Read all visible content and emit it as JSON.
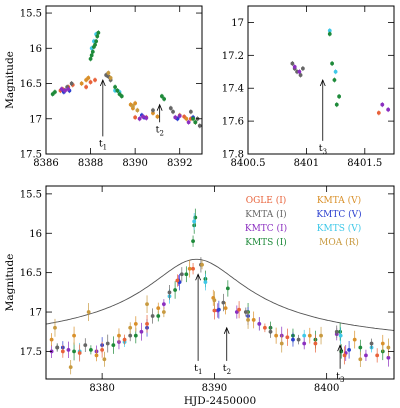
{
  "chart_data": [
    {
      "type": "scatter",
      "id": "top-left",
      "xlabel": "",
      "ylabel": "Magnitude",
      "xlim": [
        8386,
        8393
      ],
      "ylim": [
        17.5,
        15.4
      ],
      "xticks": [
        "8386",
        "8388",
        "8390",
        "8392"
      ],
      "yticks": [
        "15.5",
        "16",
        "16.5",
        "17",
        "17.5"
      ],
      "annotations": [
        {
          "label": "t",
          "sub": "1",
          "x": 8388.55,
          "arrow_from": 17.25,
          "arrow_to": 16.45
        },
        {
          "label": "t",
          "sub": "2",
          "x": 8391.1,
          "arrow_from": 17.05,
          "arrow_to": 16.8
        }
      ],
      "series": [
        {
          "name": "OGLE (I)",
          "color": "#e8623a",
          "points": [
            [
              8386.65,
              16.6
            ],
            [
              8386.75,
              16.58
            ],
            [
              8387.0,
              16.55
            ],
            [
              8387.2,
              16.52
            ],
            [
              8387.8,
              16.55
            ],
            [
              8388.0,
              16.48
            ],
            [
              8388.2,
              16.45
            ],
            [
              8390.0,
              16.98
            ],
            [
              8390.5,
              16.98
            ],
            [
              8392.2,
              16.97
            ],
            [
              8392.5,
              17.0
            ]
          ]
        },
        {
          "name": "KMTA (V)",
          "color": "#d9902a",
          "points": [
            [
              8387.6,
              16.5
            ],
            [
              8387.8,
              16.45
            ],
            [
              8387.9,
              16.42
            ],
            [
              8389.8,
              16.8
            ],
            [
              8389.9,
              16.85
            ],
            [
              8390.0,
              16.78
            ],
            [
              8390.8,
              16.92
            ],
            [
              8391.0,
              16.97
            ],
            [
              8392.0,
              16.95
            ],
            [
              8392.3,
              17.0
            ],
            [
              8392.7,
              17.05
            ]
          ]
        },
        {
          "name": "KMTA (I)",
          "color": "#666666",
          "points": [
            [
              8386.85,
              16.6
            ],
            [
              8386.95,
              16.55
            ],
            [
              8387.15,
              16.5
            ],
            [
              8388.7,
              16.38
            ],
            [
              8388.8,
              16.4
            ],
            [
              8388.9,
              16.45
            ],
            [
              8390.8,
              16.88
            ],
            [
              8391.6,
              16.85
            ],
            [
              8391.7,
              16.9
            ],
            [
              8392.5,
              16.9
            ],
            [
              8392.8,
              17.0
            ],
            [
              8392.9,
              17.1
            ]
          ]
        },
        {
          "name": "KMTC (V)",
          "color": "#2b3fcf",
          "points": [
            [
              8386.8,
              16.62
            ],
            [
              8387.05,
              16.6
            ],
            [
              8390.3,
              16.95
            ],
            [
              8390.4,
              16.98
            ],
            [
              8391.9,
              17.0
            ],
            [
              8392.6,
              16.98
            ]
          ]
        },
        {
          "name": "KMTC (I)",
          "color": "#8b2fc0",
          "points": [
            [
              8386.7,
              16.58
            ],
            [
              8386.85,
              16.6
            ],
            [
              8387.0,
              16.58
            ],
            [
              8390.2,
              17.0
            ],
            [
              8390.35,
              16.97
            ],
            [
              8390.5,
              16.99
            ],
            [
              8391.8,
              16.98
            ],
            [
              8392.0,
              16.96
            ],
            [
              8392.4,
              17.05
            ]
          ]
        },
        {
          "name": "KMTS (V)",
          "color": "#3fc8e8",
          "points": [
            [
              8388.05,
              16.0
            ],
            [
              8388.15,
              15.9
            ],
            [
              8388.25,
              15.8
            ],
            [
              8389.1,
              16.6
            ],
            [
              8389.3,
              16.62
            ]
          ]
        },
        {
          "name": "KMTS (I)",
          "color": "#1e8a3a",
          "points": [
            [
              8386.3,
              16.65
            ],
            [
              8386.4,
              16.62
            ],
            [
              8388.0,
              16.15
            ],
            [
              8388.05,
              16.1
            ],
            [
              8388.1,
              16.05
            ],
            [
              8388.15,
              15.98
            ],
            [
              8388.2,
              15.95
            ],
            [
              8388.25,
              15.9
            ],
            [
              8388.3,
              15.83
            ],
            [
              8388.35,
              15.78
            ],
            [
              8389.1,
              16.55
            ],
            [
              8389.2,
              16.6
            ],
            [
              8389.3,
              16.65
            ],
            [
              8389.4,
              16.68
            ],
            [
              8391.2,
              16.68
            ],
            [
              8391.3,
              16.72
            ],
            [
              8392.6,
              17.0
            ],
            [
              8392.7,
              17.05
            ]
          ]
        },
        {
          "name": "MOA (R)",
          "color": "#c89a40",
          "points": [
            [
              8388.8,
              16.35
            ],
            [
              8388.9,
              16.42
            ],
            [
              8389.9,
              16.82
            ],
            [
              8390.1,
              16.88
            ]
          ]
        }
      ]
    },
    {
      "type": "scatter",
      "id": "top-right",
      "xlabel": "",
      "ylabel": "",
      "xlim": [
        8400.5,
        8401.75
      ],
      "ylim": [
        17.8,
        16.9
      ],
      "xticks": [
        "8400.5",
        "8401",
        "8401.5"
      ],
      "yticks": [
        "17",
        "17.2",
        "17.4",
        "17.6",
        "17.8"
      ],
      "annotations": [
        {
          "label": "t",
          "sub": "3",
          "x": 8401.14,
          "arrow_from": 17.72,
          "arrow_to": 17.35
        }
      ],
      "series": [
        {
          "name": "OGLE (I)",
          "color": "#e8623a",
          "points": [
            [
              8401.62,
              17.55
            ]
          ]
        },
        {
          "name": "KMTA (I)",
          "color": "#666666",
          "points": [
            [
              8400.88,
              17.25
            ],
            [
              8400.9,
              17.28
            ],
            [
              8400.92,
              17.3
            ],
            [
              8400.95,
              17.32
            ],
            [
              8400.97,
              17.28
            ]
          ]
        },
        {
          "name": "KMTC (I)",
          "color": "#8b2fc0",
          "points": [
            [
              8400.9,
              17.27
            ],
            [
              8400.94,
              17.3
            ],
            [
              8401.65,
              17.5
            ],
            [
              8401.7,
              17.53
            ]
          ]
        },
        {
          "name": "KMTS (V)",
          "color": "#3fc8e8",
          "points": [
            [
              8401.2,
              17.05
            ],
            [
              8401.25,
              17.3
            ]
          ]
        },
        {
          "name": "KMTS (I)",
          "color": "#1e8a3a",
          "points": [
            [
              8401.2,
              17.07
            ],
            [
              8401.22,
              17.25
            ],
            [
              8401.24,
              17.35
            ],
            [
              8401.26,
              17.5
            ],
            [
              8401.28,
              17.45
            ]
          ]
        }
      ]
    },
    {
      "type": "scatter",
      "id": "bottom",
      "xlabel": "HJD-2450000",
      "ylabel": "Magnitude",
      "xlim": [
        8375,
        8406
      ],
      "ylim": [
        17.85,
        15.4
      ],
      "xticks": [
        "8380",
        "8390",
        "8400"
      ],
      "yticks": [
        "15.5",
        "16",
        "16.5",
        "17",
        "17.5"
      ],
      "model_curve": {
        "peak_x": 8388.4,
        "peak_mag": 16.33,
        "base_mag": 17.52,
        "width": 5.5
      },
      "annotations": [
        {
          "label": "t",
          "sub": "1",
          "x": 8388.55,
          "arrow_from": 17.62,
          "arrow_to": 16.52
        },
        {
          "label": "t",
          "sub": "2",
          "x": 8391.1,
          "arrow_from": 17.62,
          "arrow_to": 17.2
        },
        {
          "label": "t",
          "sub": "3",
          "x": 8401.2,
          "arrow_from": 17.72,
          "arrow_to": 17.42
        }
      ],
      "legend": {
        "placement": "top-right",
        "entries": [
          {
            "label": "OGLE (I)",
            "color": "#e8623a"
          },
          {
            "label": "KMTA (V)",
            "color": "#d9902a"
          },
          {
            "label": "KMTA (I)",
            "color": "#666666"
          },
          {
            "label": "KMTC (V)",
            "color": "#2b3fcf"
          },
          {
            "label": "KMTC (I)",
            "color": "#8b2fc0"
          },
          {
            "label": "KMTS (V)",
            "color": "#3fc8e8"
          },
          {
            "label": "KMTS (I)",
            "color": "#1e8a3a"
          },
          {
            "label": "MOA (R)",
            "color": "#c89a40"
          }
        ]
      },
      "series": [
        {
          "name": "KMTS (I)",
          "color": "#1e8a3a",
          "points": [
            [
              8376,
              17.45
            ],
            [
              8377.5,
              17.5
            ],
            [
              8379,
              17.48
            ],
            [
              8381,
              17.42
            ],
            [
              8383,
              17.3
            ],
            [
              8385,
              17.05
            ],
            [
              8386.5,
              16.72
            ],
            [
              8387.5,
              16.52
            ],
            [
              8388.1,
              16.1
            ],
            [
              8388.2,
              15.9
            ],
            [
              8388.3,
              15.8
            ],
            [
              8389.2,
              16.58
            ],
            [
              8391.2,
              16.7
            ],
            [
              8393,
              17.0
            ],
            [
              8395,
              17.2
            ],
            [
              8397,
              17.3
            ],
            [
              8399,
              17.35
            ],
            [
              8401.2,
              17.25
            ],
            [
              8401.3,
              17.5
            ],
            [
              8403,
              17.45
            ],
            [
              8405,
              17.5
            ]
          ]
        },
        {
          "name": "KMTS (V)",
          "color": "#3fc8e8",
          "points": [
            [
              8378,
              17.5
            ],
            [
              8382,
              17.38
            ],
            [
              8386,
              16.8
            ],
            [
              8388.2,
              15.85
            ],
            [
              8389.2,
              16.62
            ],
            [
              8394,
              17.15
            ],
            [
              8398,
              17.3
            ],
            [
              8401.25,
              17.3
            ],
            [
              8404,
              17.45
            ]
          ]
        },
        {
          "name": "KMTC (I)",
          "color": "#8b2fc0",
          "points": [
            [
              8375.5,
              17.5
            ],
            [
              8377,
              17.48
            ],
            [
              8379.5,
              17.5
            ],
            [
              8381.5,
              17.38
            ],
            [
              8383.5,
              17.25
            ],
            [
              8385.5,
              16.9
            ],
            [
              8386.8,
              16.6
            ],
            [
              8390.3,
              16.98
            ],
            [
              8392,
              17.0
            ],
            [
              8394,
              17.15
            ],
            [
              8396,
              17.3
            ],
            [
              8398,
              17.4
            ],
            [
              8400.9,
              17.28
            ],
            [
              8401.7,
              17.52
            ],
            [
              8403.5,
              17.55
            ],
            [
              8405.5,
              17.58
            ]
          ]
        },
        {
          "name": "KMTC (V)",
          "color": "#2b3fcf",
          "points": [
            [
              8376.5,
              17.45
            ],
            [
              8380,
              17.42
            ],
            [
              8384,
              17.2
            ],
            [
              8386.9,
              16.62
            ],
            [
              8390.4,
              16.97
            ],
            [
              8393,
              17.05
            ],
            [
              8397,
              17.35
            ],
            [
              8402,
              17.48
            ]
          ]
        },
        {
          "name": "KMTA (I)",
          "color": "#666666",
          "points": [
            [
              8376,
              17.45
            ],
            [
              8378.5,
              17.42
            ],
            [
              8380.5,
              17.4
            ],
            [
              8382.5,
              17.3
            ],
            [
              8384.5,
              17.05
            ],
            [
              8386,
              16.75
            ],
            [
              8387.1,
              16.52
            ],
            [
              8388.8,
              16.4
            ],
            [
              8390.8,
              16.88
            ],
            [
              8392.8,
              17.0
            ],
            [
              8395,
              17.25
            ],
            [
              8397.5,
              17.35
            ],
            [
              8400.9,
              17.25
            ],
            [
              8404,
              17.4
            ]
          ]
        },
        {
          "name": "KMTA (V)",
          "color": "#d9902a",
          "points": [
            [
              8375.5,
              17.35
            ],
            [
              8377.5,
              17.3
            ],
            [
              8379.5,
              17.55
            ],
            [
              8381.5,
              17.3
            ],
            [
              8383,
              17.15
            ],
            [
              8385,
              16.95
            ],
            [
              8387.8,
              16.45
            ],
            [
              8389.9,
              16.82
            ],
            [
              8391,
              16.95
            ],
            [
              8393.5,
              17.1
            ],
            [
              8395.5,
              17.3
            ],
            [
              8398.5,
              17.3
            ],
            [
              8402.5,
              17.35
            ],
            [
              8405,
              17.4
            ]
          ]
        },
        {
          "name": "OGLE (I)",
          "color": "#e8623a",
          "points": [
            [
              8376.5,
              17.5
            ],
            [
              8378,
              17.52
            ],
            [
              8380,
              17.48
            ],
            [
              8382,
              17.35
            ],
            [
              8384,
              17.15
            ],
            [
              8386.7,
              16.6
            ],
            [
              8388.1,
              16.45
            ],
            [
              8390,
              16.98
            ],
            [
              8392.2,
              16.97
            ],
            [
              8394.5,
              17.2
            ],
            [
              8396.5,
              17.32
            ],
            [
              8399,
              17.4
            ],
            [
              8401.6,
              17.55
            ],
            [
              8404.5,
              17.55
            ]
          ]
        },
        {
          "name": "MOA (R)",
          "color": "#c89a40",
          "points": [
            [
              8375.8,
              17.2
            ],
            [
              8377.2,
              17.7
            ],
            [
              8378.8,
              17.0
            ],
            [
              8380.2,
              17.6
            ],
            [
              8382.5,
              17.2
            ],
            [
              8384,
              16.9
            ],
            [
              8385.5,
              17.0
            ],
            [
              8388.9,
              16.4
            ],
            [
              8390,
              16.85
            ],
            [
              8393,
              17.1
            ],
            [
              8396,
              17.4
            ],
            [
              8399.5,
              17.3
            ],
            [
              8403,
              17.6
            ],
            [
              8405.5,
              17.45
            ]
          ]
        }
      ]
    }
  ]
}
